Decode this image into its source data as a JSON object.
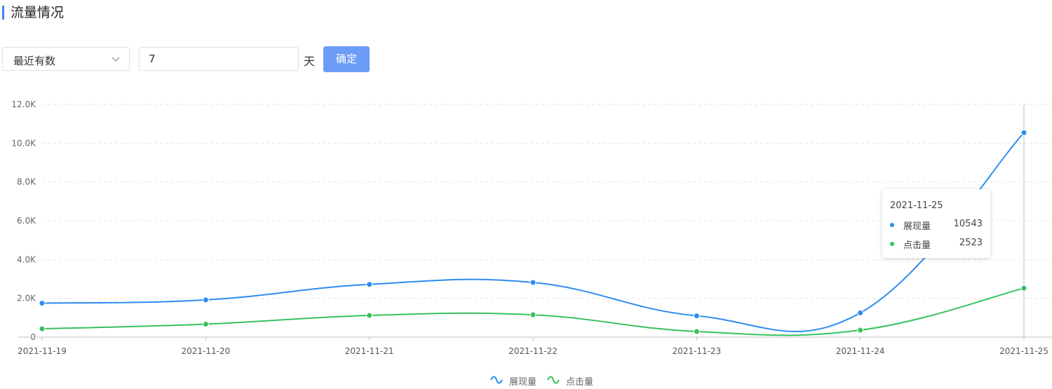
{
  "header": {
    "title": "流量情况"
  },
  "filters": {
    "range_select_value": "最近有数",
    "days_value": "7",
    "unit_label": "天",
    "confirm_label": "确定"
  },
  "colors": {
    "accent": "#3b82f6",
    "series_1": "#2d8cf0",
    "series_2": "#36c15f",
    "button": "#6b9cf6"
  },
  "chart_data": {
    "type": "line",
    "x": [
      "2021-11-19",
      "2021-11-20",
      "2021-11-21",
      "2021-11-22",
      "2021-11-23",
      "2021-11-24",
      "2021-11-25"
    ],
    "series": [
      {
        "name": "展现量",
        "values": [
          1750,
          1920,
          2720,
          2820,
          1100,
          1250,
          10543
        ]
      },
      {
        "name": "点击量",
        "values": [
          430,
          670,
          1120,
          1150,
          290,
          360,
          2523
        ]
      }
    ],
    "y_ticks": [
      "0",
      "2.0K",
      "4.0K",
      "6.0K",
      "8.0K",
      "10.0K",
      "12.0K"
    ],
    "ylim": [
      0,
      12000
    ],
    "grid": true,
    "legend_position": "bottom-center",
    "tooltip": {
      "title": "2021-11-25",
      "rows": [
        {
          "name": "展现量",
          "value": "10543"
        },
        {
          "name": "点击量",
          "value": "2523"
        }
      ]
    }
  }
}
